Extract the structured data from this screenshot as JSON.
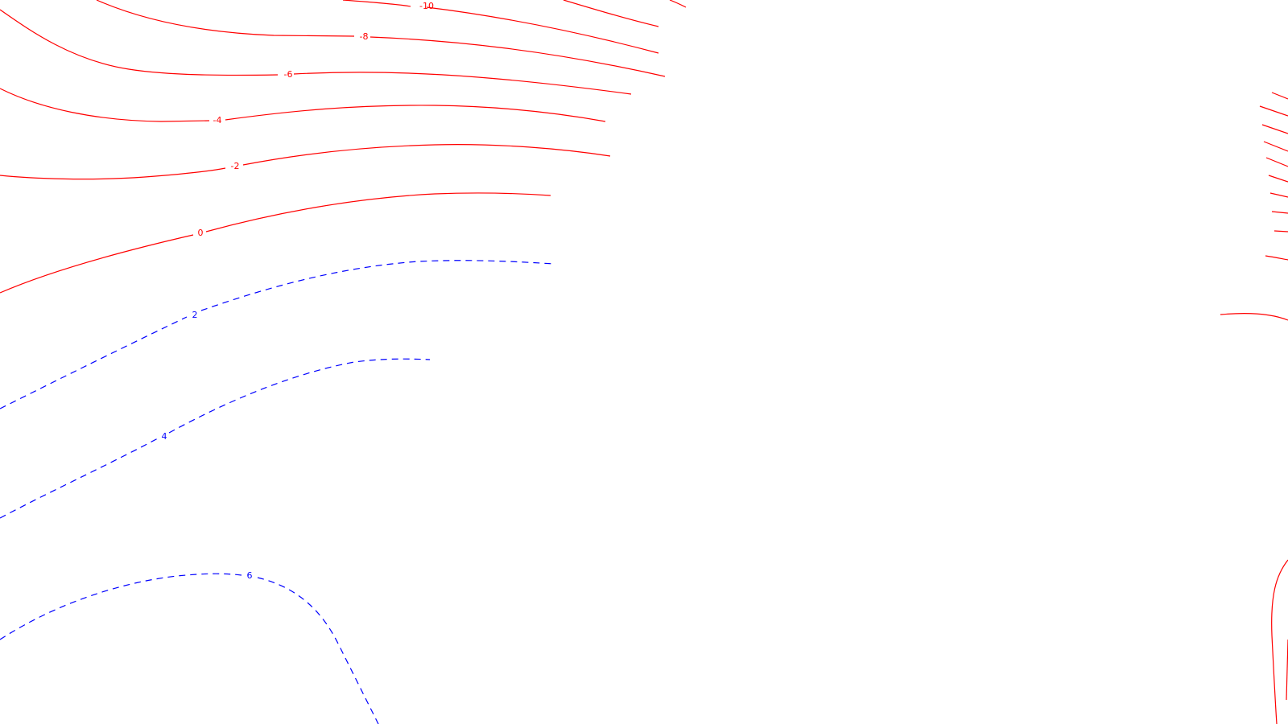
{
  "map": {
    "style": {
      "positive_color": "#ff0000",
      "negative_color": "#0000ff",
      "negative_dash": "dashed"
    },
    "contours": [
      {
        "id": "c-10",
        "value": -10,
        "label": "-10",
        "kind": "positive"
      },
      {
        "id": "c-8",
        "value": -8,
        "label": "-8",
        "kind": "positive"
      },
      {
        "id": "c-6",
        "value": -6,
        "label": "-6",
        "kind": "positive"
      },
      {
        "id": "c-4",
        "value": -4,
        "label": "-4",
        "kind": "positive"
      },
      {
        "id": "c-2",
        "value": -2,
        "label": "-2",
        "kind": "positive"
      },
      {
        "id": "c0",
        "value": 0,
        "label": "0",
        "kind": "positive"
      },
      {
        "id": "c2",
        "value": 2,
        "label": "2",
        "kind": "negative"
      },
      {
        "id": "c4",
        "value": 4,
        "label": "4",
        "kind": "negative"
      },
      {
        "id": "c6",
        "value": 6,
        "label": "6",
        "kind": "negative"
      }
    ]
  }
}
